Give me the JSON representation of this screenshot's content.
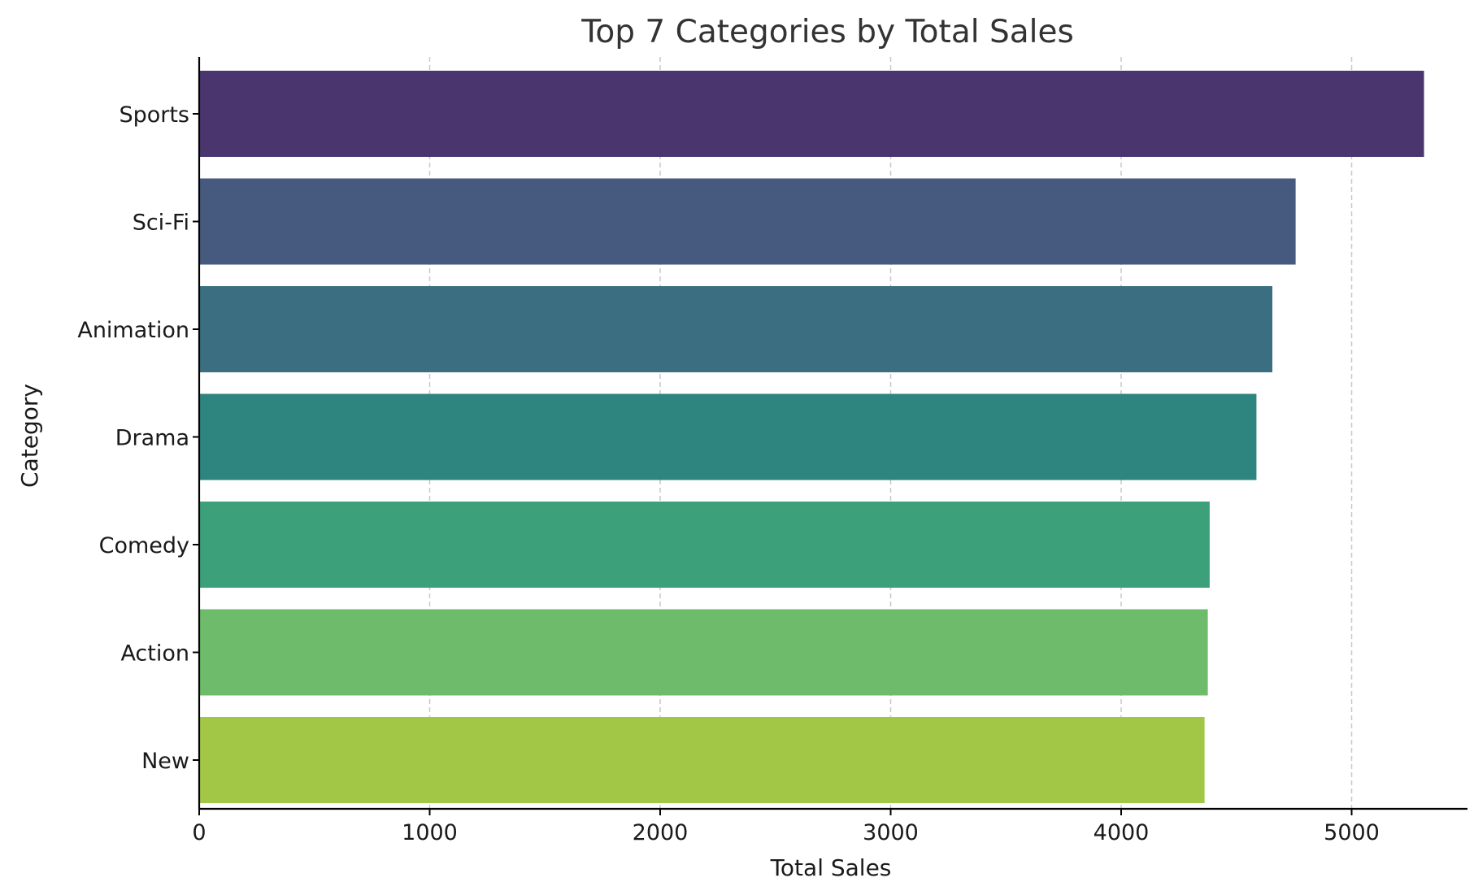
{
  "chart_data": {
    "type": "bar",
    "orientation": "horizontal",
    "title": "Top 7 Categories by Total Sales",
    "xlabel": "Total Sales",
    "ylabel": "Category",
    "categories": [
      "Sports",
      "Sci-Fi",
      "Animation",
      "Drama",
      "Comedy",
      "Action",
      "New"
    ],
    "values": [
      5314,
      4757,
      4656,
      4587,
      4384,
      4376,
      4362
    ],
    "colors": [
      "#4a356f",
      "#46597f",
      "#3a6e80",
      "#2e847e",
      "#3ca07b",
      "#6dbb6b",
      "#a2c747"
    ],
    "xlim": [
      0,
      5600
    ],
    "xticks": [
      "0",
      "1000",
      "2000",
      "3000",
      "4000",
      "5000"
    ],
    "grid": "x-dashed"
  }
}
